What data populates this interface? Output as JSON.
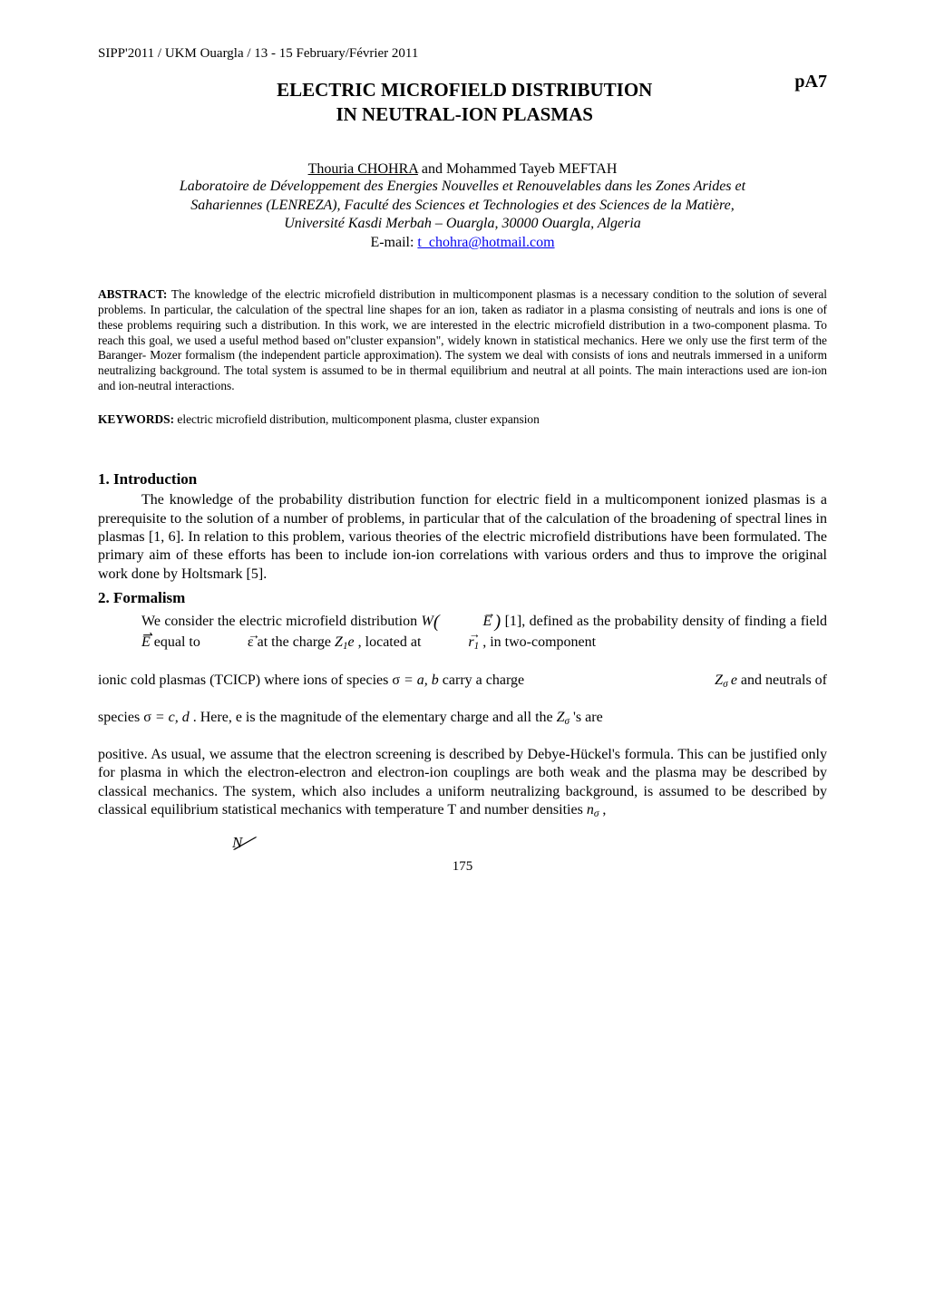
{
  "conference_header": "SIPP'2011 / UKM Ouargla / 13 - 15 February/Février 2011",
  "page_label": "pA7",
  "title_line1": "ELECTRIC MICROFIELD DISTRIBUTION",
  "title_line2": "IN NEUTRAL-ION PLASMAS",
  "author_underlined": "Thouria CHOHRA",
  "author_rest": " and Mohammed Tayeb MEFTAH",
  "affiliation_line1": "Laboratoire de Développement des Energies Nouvelles et Renouvelables dans les Zones Arides et",
  "affiliation_line2": "Sahariennes (LENREZA), Faculté des Sciences et Technologies et des Sciences de la Matière,",
  "affiliation_line3": "Université Kasdi Merbah – Ouargla, 30000 Ouargla, Algeria",
  "email_label": "E-mail: ",
  "email_link_text": "t_chohra@hotmail.com",
  "abstract_label": "ABSTRACT: ",
  "abstract_text": "The knowledge of the electric microfield distribution in multicomponent plasmas is a necessary condition to the solution of several problems. In particular, the calculation of the spectral line shapes for an ion, taken as radiator in a plasma consisting of neutrals and ions is one of these problems requiring such a distribution. In this work, we are interested in the electric microfield distribution in a two-component plasma. To reach this goal, we used a useful method based on\"cluster expansion\", widely known in statistical mechanics. Here we only use the first term of the Baranger- Mozer formalism (the independent particle approximation). The system we deal with consists of ions and neutrals immersed in a uniform neutralizing background. The total system is assumed to be in thermal equilibrium and neutral at all points. The main interactions used are ion-ion and ion-neutral interactions.",
  "keywords_label": "KEYWORDS: ",
  "keywords_text": "electric microfield distribution, multicomponent plasma, cluster expansion",
  "sec1_heading": "1. Introduction",
  "sec1_para": "The    knowledge of the probability distribution function for electric field in a multicomponent ionized plasmas is a prerequisite to the solution of a number of  problems, in particular that of the calculation of the broadening of spectral lines in plasmas [1, 6]. In relation to this problem, various theories of the electric microfield distributions have been formulated. The primary aim of these efforts has been to include ion-ion correlations with various orders and thus to improve the original work done by Holtsmark [5].",
  "sec2_heading": "2. Formalism",
  "sec2_p1_a": "We consider the electric microfield distribution ",
  "sec2_p1_b": " [1], defined as the probability density of finding a field ",
  "sec2_p1_c": " equal to ",
  "sec2_p1_d": " at the charge ",
  "sec2_p1_e": ", located at ",
  "sec2_p1_f": ", in two-component",
  "sec2_p2_left": "ionic cold plasmas (TCICP) where ions of species σ ",
  "sec2_p2_left_b": " carry a charge",
  "sec2_p2_species": " = a, b",
  "sec2_p2_right": " and neutrals of",
  "sec2_p3_a": "species σ",
  "sec2_p3_species": " = c, d",
  "sec2_p3_b": ". Here, e is the magnitude of the elementary charge and all the ",
  "sec2_p3_c": "'s are",
  "sec2_p4": "positive. As usual, we assume that the electron screening is described by Debye-Hückel's formula. This can be justified only for plasma in which the electron-electron and electron-ion couplings are both weak and the plasma may be described by classical mechanics. The system, which also includes a uniform neutralizing background, is assumed to be described by classical equilibrium statistical mechanics with temperature T and number densities ",
  "sec2_p4_end": " ,",
  "sym_W": "W",
  "sym_E": "E",
  "sym_eps": "ε",
  "sym_Z1e": "Z",
  "sym_1": "1",
  "sym_e": "e",
  "sym_r": "r",
  "sym_Z": "Z",
  "sym_sigma": "σ",
  "sym_n": "n",
  "sym_N": "N",
  "page_number": "175",
  "colors": {
    "text": "#000000",
    "bg": "#ffffff",
    "link": "#0000ee"
  },
  "fonts": {
    "body_family": "Times New Roman",
    "body_size_pt": 12,
    "abstract_size_pt": 10,
    "title_size_pt": 16,
    "heading_size_pt": 13
  }
}
